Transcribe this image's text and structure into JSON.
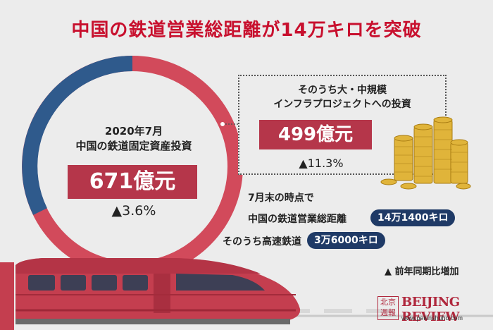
{
  "title": "中国の鉄道営業総距離が14万キロを突破",
  "investment": {
    "period": "2020年7月",
    "label": "中国の鉄道固定資産投資",
    "value": "671億元",
    "change": "▲3.6%"
  },
  "large_projects": {
    "label_line1": "そのうち大・中規模",
    "label_line2": "インフラプロジェクトへの投資",
    "value": "499億元",
    "change": "▲11.3%"
  },
  "distance": {
    "heading": "7月末の時点で",
    "total_label": "中国の鉄道営業総距離",
    "total_value": "14万1400キロ",
    "hsr_label": "そのうち高速鉄道",
    "hsr_value": "3万6000キロ"
  },
  "footnote": "▲ 前年同期比増加",
  "logo": {
    "seal": "北京 週報",
    "name": "BEIJING REVIEW",
    "url": "www.pekinshuho.com"
  },
  "colors": {
    "accent_red": "#c8102e",
    "ring_red": "#d24a5b",
    "ring_blue": "#2f5a8c",
    "box_red": "#b5364a",
    "pill_navy": "#1f3a66"
  },
  "icons": [
    "coin-stack-icon",
    "train-illustration"
  ]
}
